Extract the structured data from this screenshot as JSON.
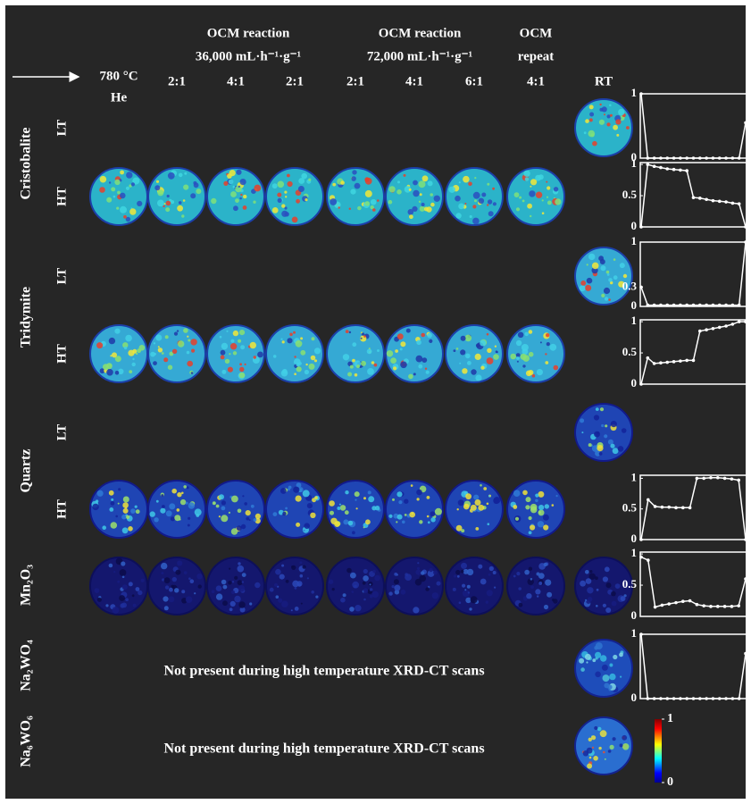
{
  "header": {
    "start": [
      "780 °C",
      "He"
    ],
    "groups": [
      {
        "title": "OCM reaction",
        "subtitle": "36,000 mL·h⁻¹·g⁻¹"
      },
      {
        "title": "OCM reaction",
        "subtitle": "72,000 mL·h⁻¹·g⁻¹"
      },
      {
        "title": "OCM",
        "subtitle": "repeat"
      }
    ],
    "columns": [
      "2:1",
      "4:1",
      "2:1",
      "2:1",
      "4:1",
      "6:1",
      "4:1"
    ],
    "rt": "RT"
  },
  "rows": [
    {
      "label": "Cristobalite",
      "levels": [
        {
          "label": "LT",
          "plot": {
            "ylim": [
              0,
              1
            ],
            "yticks": [
              0,
              1
            ],
            "values": [
              1,
              0,
              0,
              0,
              0,
              0,
              0,
              0,
              0,
              0,
              0,
              0,
              0,
              0,
              0,
              0,
              0.55
            ]
          }
        },
        {
          "label": "HT",
          "plot": {
            "ylim": [
              0,
              1.03
            ],
            "yticks": [
              0,
              0.5,
              1
            ],
            "values": [
              0,
              1,
              0.97,
              0.95,
              0.93,
              0.92,
              0.91,
              0.9,
              0.47,
              0.46,
              0.44,
              0.42,
              0.41,
              0.4,
              0.38,
              0.37,
              0
            ]
          }
        }
      ]
    },
    {
      "label": "Tridymite",
      "levels": [
        {
          "label": "LT",
          "plot": {
            "ylim": [
              0,
              1
            ],
            "yticks": [
              0,
              0.3,
              1
            ],
            "values": [
              0.3,
              0.02,
              0.02,
              0.02,
              0.02,
              0.02,
              0.02,
              0.02,
              0.02,
              0.02,
              0.02,
              0.02,
              0.02,
              0.02,
              0.02,
              0.02,
              1
            ]
          }
        },
        {
          "label": "HT",
          "plot": {
            "ylim": [
              0,
              1.03
            ],
            "yticks": [
              0,
              0.5,
              1
            ],
            "values": [
              0,
              0.42,
              0.33,
              0.34,
              0.35,
              0.36,
              0.37,
              0.38,
              0.38,
              0.85,
              0.87,
              0.89,
              0.91,
              0.93,
              0.96,
              1,
              1
            ]
          }
        }
      ]
    },
    {
      "label": "Quartz",
      "levels": [
        {
          "label": "LT"
        },
        {
          "label": "HT",
          "plot": {
            "ylim": [
              0,
              1.05
            ],
            "yticks": [
              0,
              0.5,
              1
            ],
            "values": [
              0,
              0.65,
              0.54,
              0.53,
              0.53,
              0.52,
              0.52,
              0.52,
              1,
              1,
              1.01,
              1.01,
              1,
              0.99,
              0.97,
              0
            ]
          }
        }
      ]
    },
    {
      "label": "Mn₂O₃",
      "levels": [
        {
          "plot": {
            "ylim": [
              0,
              1.03
            ],
            "yticks": [
              0,
              0.5,
              1
            ],
            "values": [
              0.95,
              0.9,
              0.15,
              0.18,
              0.2,
              0.22,
              0.24,
              0.25,
              0.19,
              0.17,
              0.16,
              0.16,
              0.16,
              0.16,
              0.17,
              0.6
            ]
          }
        }
      ]
    },
    {
      "label": "Na₂WO₄",
      "levels": [
        {
          "note": "Not present during high temperature XRD-CT scans",
          "plot": {
            "ylim": [
              0,
              1
            ],
            "yticks": [
              0,
              1
            ],
            "values": [
              1,
              0,
              0,
              0,
              0,
              0,
              0,
              0,
              0,
              0,
              0,
              0,
              0,
              0,
              0,
              0,
              0.7
            ]
          }
        }
      ]
    },
    {
      "label": "Na₆WO₆",
      "levels": [
        {
          "note": "Not present during high temperature XRD-CT scans"
        }
      ]
    }
  ],
  "colorbar": {
    "ticks": [
      0,
      1
    ]
  }
}
